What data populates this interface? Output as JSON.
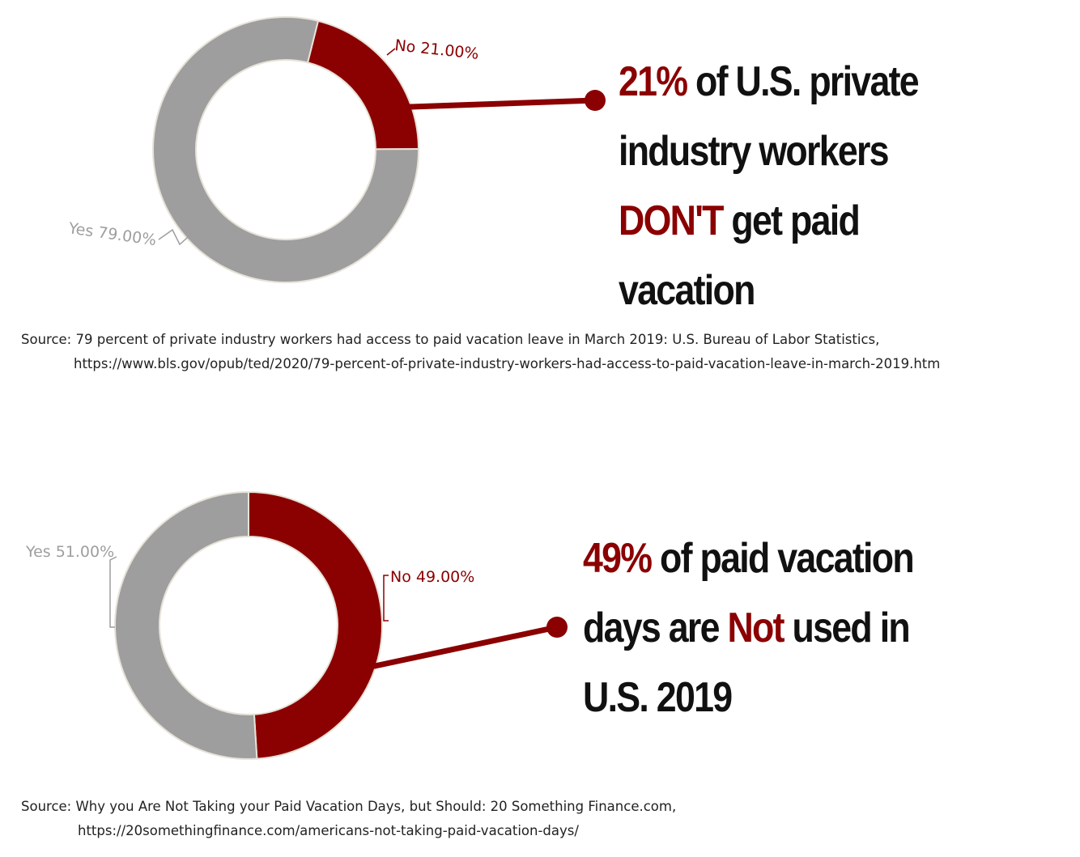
{
  "colors": {
    "accent": "#8b0000",
    "neutral": "#9e9e9e",
    "text": "#111111"
  },
  "chart_data": [
    {
      "type": "pie",
      "variant": "donut",
      "slices": [
        {
          "label": "No",
          "value": 21.0,
          "display": "No 21.00%",
          "color": "#8b0000"
        },
        {
          "label": "Yes",
          "value": 79.0,
          "display": "Yes 79.00%",
          "color": "#9e9e9e"
        }
      ],
      "headline": {
        "line1_highlight": "21%",
        "line1_rest": " of U.S. private",
        "line2": "industry workers",
        "line3_highlight": "DON'T",
        "line3_rest": " get paid",
        "line4": "vacation"
      },
      "source": {
        "line1": "Source: 79 percent of private industry workers had access to paid vacation leave in March 2019: U.S. Bureau of Labor Statistics,",
        "line2": "https://www.bls.gov/opub/ted/2020/79-percent-of-private-industry-workers-had-access-to-paid-vacation-leave-in-march-2019.htm"
      }
    },
    {
      "type": "pie",
      "variant": "donut",
      "slices": [
        {
          "label": "No",
          "value": 49.0,
          "display": "No 49.00%",
          "color": "#8b0000"
        },
        {
          "label": "Yes",
          "value": 51.0,
          "display": "Yes 51.00%",
          "color": "#9e9e9e"
        }
      ],
      "headline": {
        "line1_highlight": "49%",
        "line1_rest": " of paid vacation",
        "line2_start": "days are ",
        "line2_highlight": "Not",
        "line2_rest": " used in",
        "line3": "U.S. 2019"
      },
      "source": {
        "line1": "Source: Why you Are Not Taking your Paid Vacation Days, but Should: 20 Something Finance.com,",
        "line2": "https://20somethingfinance.com/americans-not-taking-paid-vacation-days/"
      }
    }
  ]
}
